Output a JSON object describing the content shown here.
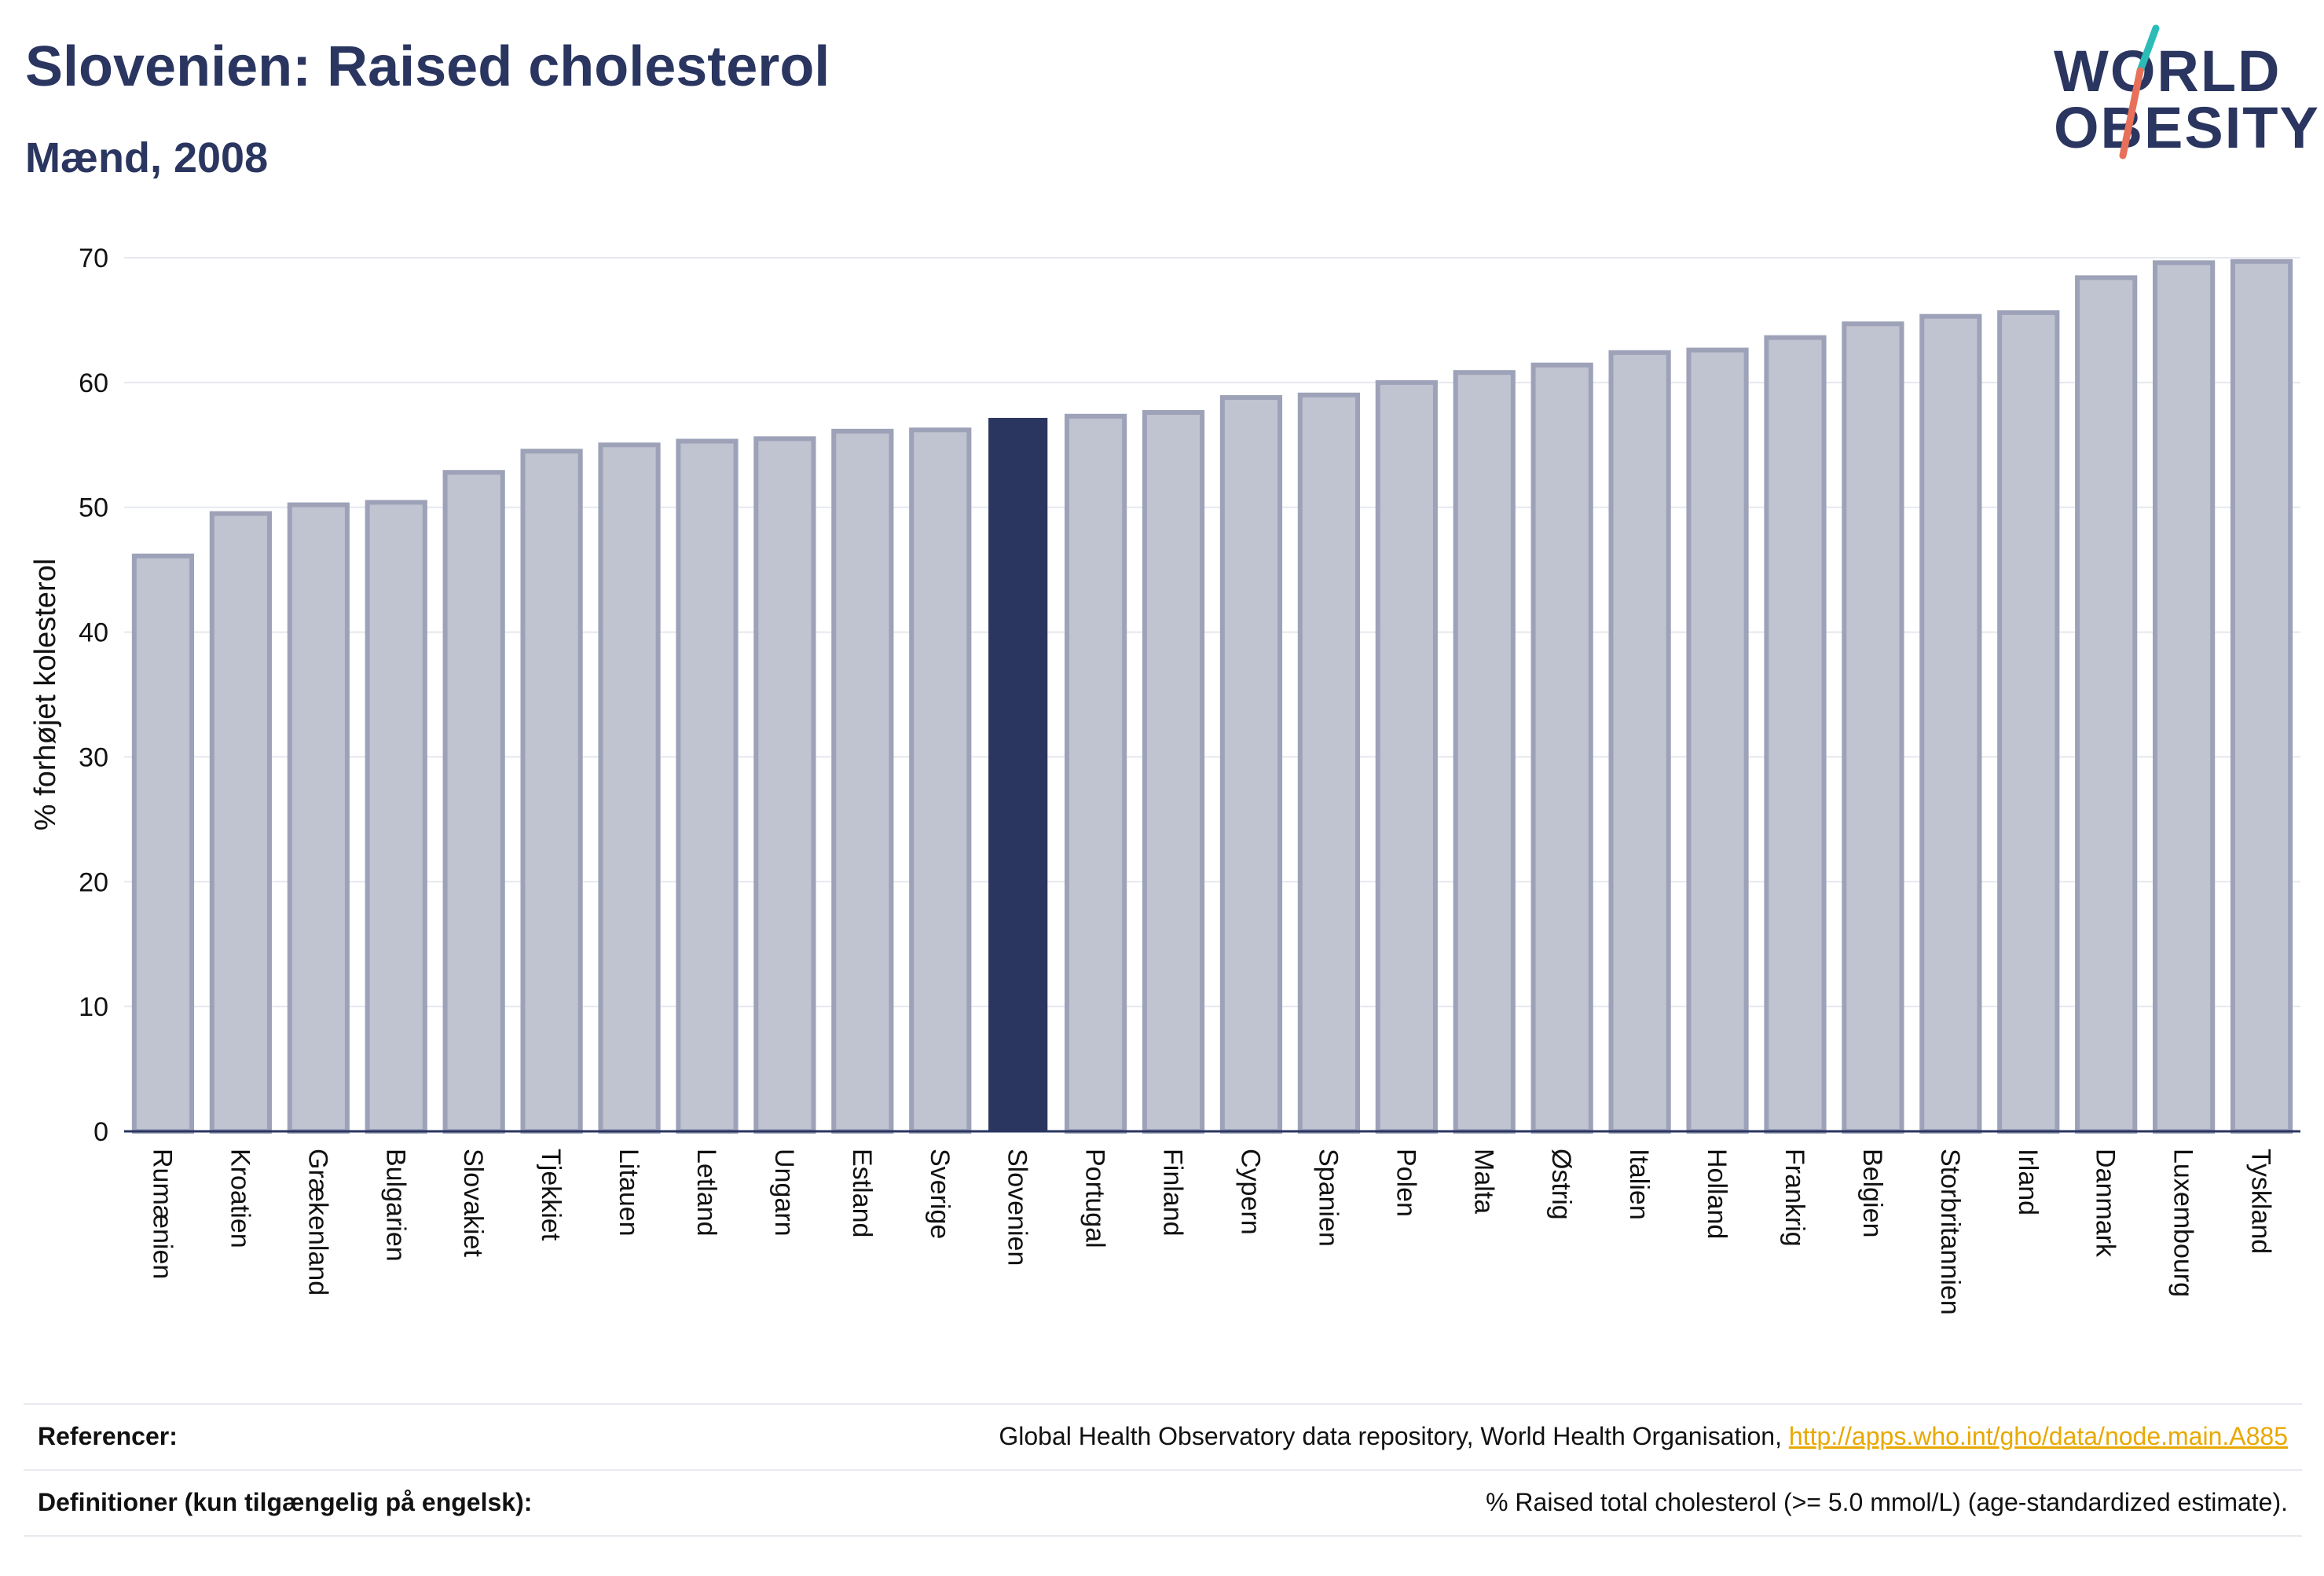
{
  "header": {
    "title": "Slovenien: Raised cholesterol",
    "subtitle": "Mænd, 2008"
  },
  "logo": {
    "line1": "WORLD",
    "line2": "OBESITY",
    "colors": {
      "text": "#2a3560",
      "slash_top": "#2bbcb8",
      "slash_bottom": "#e8705a"
    }
  },
  "footer": {
    "references_label": "Referencer:",
    "references_text": "Global Health Observatory data repository, World Health Organisation,",
    "references_link": "http://apps.who.int/gho/data/node.main.A885",
    "definitions_label": "Definitioner (kun tilgængelig på engelsk):",
    "definitions_text": "% Raised total cholesterol (>= 5.0 mmol/L) (age-standardized estimate)."
  },
  "chart_data": {
    "type": "bar",
    "title": "Slovenien: Raised cholesterol",
    "subtitle": "Mænd, 2008",
    "xlabel": "",
    "ylabel": "% forhøjet kolesterol",
    "ylim": [
      0,
      70
    ],
    "yticks": [
      0,
      10,
      20,
      30,
      40,
      50,
      60,
      70
    ],
    "grid": true,
    "highlight": "Slovenien",
    "colors": {
      "bar": "#c0c3d0",
      "bar_border": "#9da2b8",
      "highlight": "#2a3560",
      "grid": "#e6e8ef",
      "axis": "#2a3560"
    },
    "categories": [
      "Rumænien",
      "Kroatien",
      "Grækenland",
      "Bulgarien",
      "Slovakiet",
      "Tjekkiet",
      "Litauen",
      "Letland",
      "Ungarn",
      "Estland",
      "Sverige",
      "Slovenien",
      "Portugal",
      "Finland",
      "Cypern",
      "Spanien",
      "Polen",
      "Malta",
      "Østrig",
      "Italien",
      "Holland",
      "Frankrig",
      "Belgien",
      "Storbritannien",
      "Irland",
      "Danmark",
      "Luxembourg",
      "Tyskland"
    ],
    "values": [
      46.1,
      49.5,
      50.2,
      50.4,
      52.8,
      54.5,
      55.0,
      55.3,
      55.5,
      56.1,
      56.2,
      57.1,
      57.3,
      57.6,
      58.8,
      59.0,
      60.0,
      60.8,
      61.4,
      62.4,
      62.6,
      63.6,
      64.7,
      65.3,
      65.6,
      68.4,
      69.6,
      69.7
    ]
  }
}
